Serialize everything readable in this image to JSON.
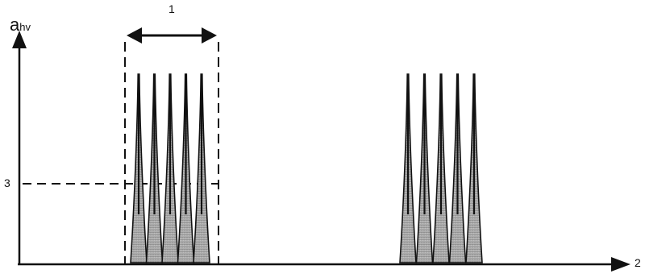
{
  "diagram": {
    "y_axis_label_main": "a",
    "y_axis_label_sub": "hv",
    "callouts": {
      "width_marker": "1",
      "threshold_marker": "3",
      "x_axis_marker": "2"
    },
    "groups": [
      {
        "pulses": 5
      },
      {
        "pulses": 5
      }
    ],
    "colors": {
      "ink": "#111111",
      "fill_light": "#d6d6d6",
      "fill_dark": "#6e6e6e"
    }
  }
}
